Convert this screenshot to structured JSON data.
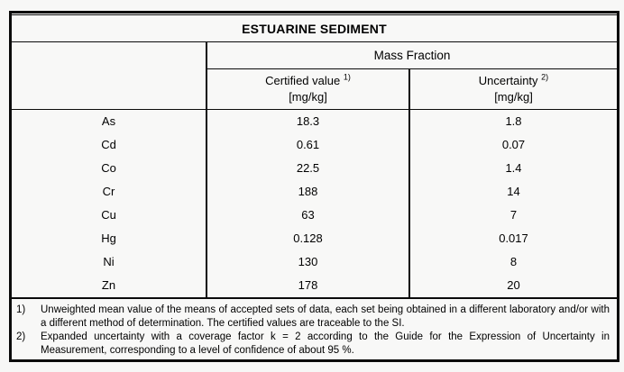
{
  "page": {
    "background": "#f7f7f6",
    "line_color": "#0b0b0b"
  },
  "table": {
    "title": "ESTUARINE SEDIMENT",
    "group_header": "Mass Fraction",
    "columns": [
      {
        "label": "Certified value",
        "footnote_ref": "1)",
        "unit": "[mg/kg]"
      },
      {
        "label": "Uncertainty",
        "footnote_ref": "2)",
        "unit": "[mg/kg]"
      }
    ],
    "rows": [
      {
        "element": "As",
        "certified_value": "18.3",
        "uncertainty": "1.8"
      },
      {
        "element": "Cd",
        "certified_value": "0.61",
        "uncertainty": "0.07"
      },
      {
        "element": "Co",
        "certified_value": "22.5",
        "uncertainty": "1.4"
      },
      {
        "element": "Cr",
        "certified_value": "188",
        "uncertainty": "14"
      },
      {
        "element": "Cu",
        "certified_value": "63",
        "uncertainty": "7"
      },
      {
        "element": "Hg",
        "certified_value": "0.128",
        "uncertainty": "0.017"
      },
      {
        "element": "Ni",
        "certified_value": "130",
        "uncertainty": "8"
      },
      {
        "element": "Zn",
        "certified_value": "178",
        "uncertainty": "20"
      }
    ]
  },
  "footnotes": [
    {
      "marker": "1)",
      "text": "Unweighted mean value of the means of accepted sets of data, each set being obtained in a different laboratory and/or with a different method of determination. The certified values are traceable to the SI."
    },
    {
      "marker": "2)",
      "text": "Expanded uncertainty with a coverage factor k = 2 according to the Guide for the Expression of Uncertainty in Measurement, corresponding to a level of confidence of about 95 %."
    }
  ]
}
